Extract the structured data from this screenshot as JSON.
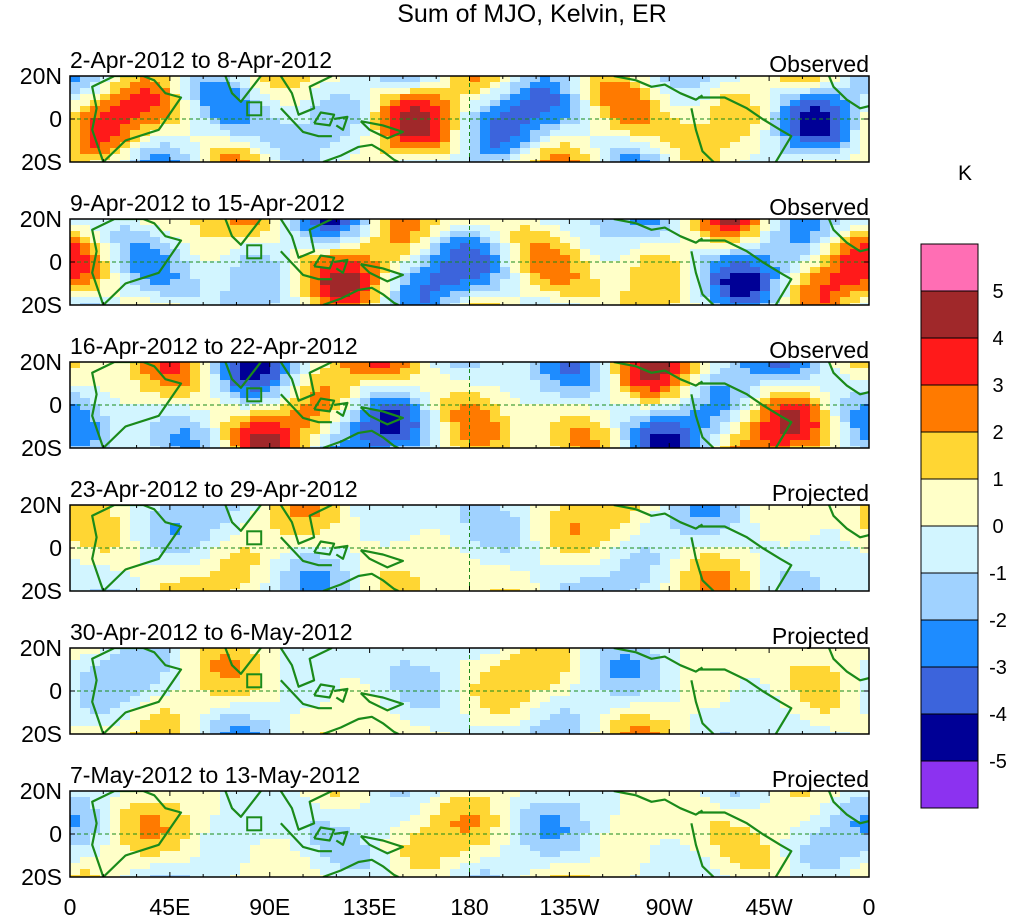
{
  "chart_data": {
    "type": "heatmap",
    "title": "Sum of MJO, Kelvin, ER",
    "x_ticks": [
      "0",
      "45E",
      "90E",
      "135E",
      "180",
      "135W",
      "90W",
      "45W",
      "0"
    ],
    "y_ticks": [
      "20N",
      "0",
      "20S"
    ],
    "xlim": [
      0,
      360
    ],
    "ylim": [
      -20,
      20
    ],
    "panels": [
      {
        "period": "2-Apr-2012 to 8-Apr-2012",
        "status": "Observed"
      },
      {
        "period": "9-Apr-2012 to 15-Apr-2012",
        "status": "Observed"
      },
      {
        "period": "16-Apr-2012 to 22-Apr-2012",
        "status": "Observed"
      },
      {
        "period": "23-Apr-2012 to 29-Apr-2012",
        "status": "Projected"
      },
      {
        "period": "30-Apr-2012 to 6-May-2012",
        "status": "Projected"
      },
      {
        "period": "7-May-2012 to 13-May-2012",
        "status": "Projected"
      }
    ],
    "colorbar": {
      "unit": "K",
      "labels": [
        "5",
        "4",
        "3",
        "2",
        "1",
        "0",
        "-1",
        "-2",
        "-3",
        "-4",
        "-5"
      ],
      "colors": [
        "#ff6eb4",
        "#a0282a",
        "#ff1a1a",
        "#ff7a00",
        "#ffd633",
        "#ffffc8",
        "#d2f5ff",
        "#a0d2ff",
        "#1e8cff",
        "#3c64dc",
        "#000096",
        "#8c32f0"
      ]
    }
  }
}
